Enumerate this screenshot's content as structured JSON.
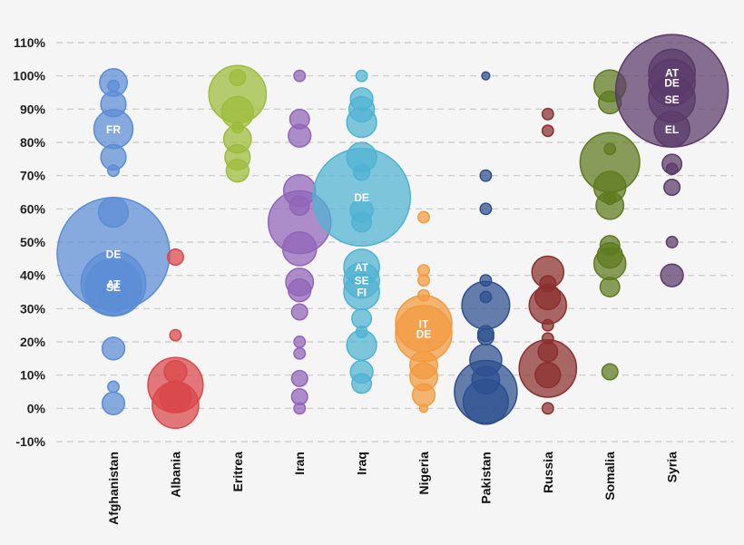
{
  "chart_data": {
    "type": "scatter",
    "title": "",
    "xlabel": "",
    "ylabel": "",
    "ylim": [
      -10,
      110
    ],
    "y_ticks": [
      "-10%",
      "0%",
      "10%",
      "20%",
      "30%",
      "40%",
      "50%",
      "60%",
      "70%",
      "80%",
      "90%",
      "100%",
      "110%"
    ],
    "grid": true,
    "categories": [
      "Afghanistan",
      "Albania",
      "Eritrea",
      "Iran",
      "Iraq",
      "Nigeria",
      "Pakistan",
      "Russia",
      "Somalia",
      "Syria"
    ],
    "series": [
      {
        "category": "Afghanistan",
        "color": "#5b8dd6",
        "points": [
          {
            "y": 46.5,
            "size": 1,
            "label": "DE"
          },
          {
            "y": 37.5,
            "size": 0.33,
            "label": "AT"
          },
          {
            "y": 36.5,
            "size": 0.25,
            "label": "SE"
          },
          {
            "y": 84,
            "size": 0.12,
            "label": "FR"
          },
          {
            "y": 59,
            "size": 0.07
          },
          {
            "y": 98,
            "size": 0.06
          },
          {
            "y": 91.5,
            "size": 0.05
          },
          {
            "y": 75.5,
            "size": 0.05
          },
          {
            "y": 33,
            "size": 0.06
          },
          {
            "y": 18,
            "size": 0.04
          },
          {
            "y": 1.5,
            "size": 0.04
          },
          {
            "y": 71.5,
            "size": 0.01
          },
          {
            "y": 6.5,
            "size": 0.01
          },
          {
            "y": 97,
            "size": 0.01
          }
        ]
      },
      {
        "category": "Albania",
        "color": "#d9474a",
        "points": [
          {
            "y": 7,
            "size": 0.24
          },
          {
            "y": 1,
            "size": 0.17
          },
          {
            "y": 3.5,
            "size": 0.08
          },
          {
            "y": 11,
            "size": 0.04
          },
          {
            "y": 45.5,
            "size": 0.02
          },
          {
            "y": 22,
            "size": 0.01
          }
        ]
      },
      {
        "category": "Eritrea",
        "color": "#9cbd3a",
        "points": [
          {
            "y": 94.5,
            "size": 0.26
          },
          {
            "y": 89,
            "size": 0.08
          },
          {
            "y": 81,
            "size": 0.06
          },
          {
            "y": 75.5,
            "size": 0.05
          },
          {
            "y": 71.5,
            "size": 0.04
          },
          {
            "y": 99.5,
            "size": 0.02
          },
          {
            "y": 84.5,
            "size": 0.01
          }
        ]
      },
      {
        "category": "Iran",
        "color": "#9064b8",
        "points": [
          {
            "y": 56,
            "size": 0.31
          },
          {
            "y": 48,
            "size": 0.09
          },
          {
            "y": 65.5,
            "size": 0.08
          },
          {
            "y": 38,
            "size": 0.06
          },
          {
            "y": 82,
            "size": 0.04
          },
          {
            "y": 35.5,
            "size": 0.04
          },
          {
            "y": 87,
            "size": 0.03
          },
          {
            "y": 61,
            "size": 0.03
          },
          {
            "y": 29,
            "size": 0.02
          },
          {
            "y": 9,
            "size": 0.02
          },
          {
            "y": 3.5,
            "size": 0.02
          },
          {
            "y": 16.5,
            "size": 0.01
          },
          {
            "y": 20,
            "size": 0.01
          },
          {
            "y": 0,
            "size": 0.01
          },
          {
            "y": 100,
            "size": 0.01
          }
        ]
      },
      {
        "category": "Iraq",
        "color": "#4fb3d1",
        "points": [
          {
            "y": 63.5,
            "size": 0.75,
            "label": "DE"
          },
          {
            "y": 42.5,
            "size": 0.1,
            "label": "AT"
          },
          {
            "y": 38.5,
            "size": 0.1,
            "label": "SE"
          },
          {
            "y": 35,
            "size": 0.1,
            "label": "FI"
          },
          {
            "y": 75.5,
            "size": 0.07
          },
          {
            "y": 86,
            "size": 0.07
          },
          {
            "y": 19,
            "size": 0.07
          },
          {
            "y": 90,
            "size": 0.05
          },
          {
            "y": 93,
            "size": 0.04
          },
          {
            "y": 59.5,
            "size": 0.04
          },
          {
            "y": 56,
            "size": 0.03
          },
          {
            "y": 27,
            "size": 0.03
          },
          {
            "y": 11,
            "size": 0.04
          },
          {
            "y": 7.5,
            "size": 0.03
          },
          {
            "y": 71,
            "size": 0.02
          },
          {
            "y": 23,
            "size": 0.01
          },
          {
            "y": 100,
            "size": 0.01
          }
        ]
      },
      {
        "category": "Nigeria",
        "color": "#f39a3e",
        "points": [
          {
            "y": 25.5,
            "size": 0.25,
            "label": "IT"
          },
          {
            "y": 22.5,
            "size": 0.25,
            "label": "DE"
          },
          {
            "y": 13,
            "size": 0.06
          },
          {
            "y": 9.5,
            "size": 0.06
          },
          {
            "y": 4,
            "size": 0.04
          },
          {
            "y": 57.5,
            "size": 0.01
          },
          {
            "y": 41.5,
            "size": 0.01
          },
          {
            "y": 38.5,
            "size": 0.01
          },
          {
            "y": 34,
            "size": 0.01
          },
          {
            "y": 0,
            "size": 0.005
          }
        ]
      },
      {
        "category": "Pakistan",
        "color": "#2c4f8f",
        "points": [
          {
            "y": 5,
            "size": 0.31
          },
          {
            "y": 31,
            "size": 0.18
          },
          {
            "y": 2,
            "size": 0.16
          },
          {
            "y": 14.5,
            "size": 0.08
          },
          {
            "y": 8.5,
            "size": 0.06
          },
          {
            "y": 22.5,
            "size": 0.02
          },
          {
            "y": 21.5,
            "size": 0.02
          },
          {
            "y": 38.5,
            "size": 0.01
          },
          {
            "y": 33.5,
            "size": 0.01
          },
          {
            "y": 60,
            "size": 0.01
          },
          {
            "y": 70,
            "size": 0.01
          },
          {
            "y": 100,
            "size": 0.005
          }
        ]
      },
      {
        "category": "Russia",
        "color": "#8b2f2e",
        "points": [
          {
            "y": 12,
            "size": 0.26
          },
          {
            "y": 31,
            "size": 0.11
          },
          {
            "y": 41,
            "size": 0.08
          },
          {
            "y": 33.5,
            "size": 0.05
          },
          {
            "y": 17,
            "size": 0.03
          },
          {
            "y": 10,
            "size": 0.05
          },
          {
            "y": 37.5,
            "size": 0.02
          },
          {
            "y": 25,
            "size": 0.01
          },
          {
            "y": 21,
            "size": 0.01
          },
          {
            "y": 88.5,
            "size": 0.01
          },
          {
            "y": 83.5,
            "size": 0.01
          },
          {
            "y": 0,
            "size": 0.01
          }
        ]
      },
      {
        "category": "Somalia",
        "color": "#5e7a1f",
        "points": [
          {
            "y": 74,
            "size": 0.28
          },
          {
            "y": 97,
            "size": 0.08
          },
          {
            "y": 66.5,
            "size": 0.08
          },
          {
            "y": 61,
            "size": 0.06
          },
          {
            "y": 43.5,
            "size": 0.08
          },
          {
            "y": 46,
            "size": 0.05
          },
          {
            "y": 92,
            "size": 0.04
          },
          {
            "y": 49,
            "size": 0.03
          },
          {
            "y": 36.5,
            "size": 0.03
          },
          {
            "y": 11,
            "size": 0.02
          },
          {
            "y": 63,
            "size": 0.01
          },
          {
            "y": 78,
            "size": 0.01
          }
        ]
      },
      {
        "category": "Syria",
        "color": "#5a3a69",
        "points": [
          {
            "y": 95.5,
            "size": 1,
            "label": ""
          },
          {
            "y": 101,
            "size": 0.17,
            "label": "AT"
          },
          {
            "y": 98,
            "size": 0.17,
            "label": "DE"
          },
          {
            "y": 93,
            "size": 0.17,
            "label": "SE"
          },
          {
            "y": 84,
            "size": 0.1,
            "label": "EL"
          },
          {
            "y": 40,
            "size": 0.04
          },
          {
            "y": 73.5,
            "size": 0.03
          },
          {
            "y": 66.5,
            "size": 0.02
          },
          {
            "y": 72,
            "size": 0.01
          },
          {
            "y": 50,
            "size": 0.01
          }
        ]
      }
    ]
  }
}
